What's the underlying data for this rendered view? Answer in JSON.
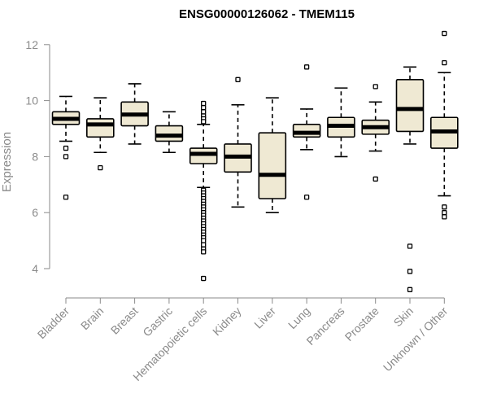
{
  "chart_data": {
    "type": "boxplot",
    "title": "ENSG00000126062 - TMEM115",
    "ylabel": "Expression",
    "xlabel": "",
    "ylim": [
      3.0,
      12.6
    ],
    "yticks": [
      4,
      6,
      8,
      10,
      12
    ],
    "grid": false,
    "colors": {
      "box_fill": "#efe9d3",
      "stroke": "#000000",
      "axis": "#8a8a8a"
    },
    "categories": [
      "Bladder",
      "Brain",
      "Breast",
      "Gastric",
      "Hematopoietic cells",
      "Kidney",
      "Liver",
      "Lung",
      "Pancreas",
      "Prostate",
      "Skin",
      "Unknown / Other"
    ],
    "boxes": [
      {
        "name": "Bladder",
        "whisker_low": 8.55,
        "q1": 9.15,
        "median": 9.35,
        "q3": 9.6,
        "whisker_high": 10.15,
        "outliers": [
          8.3,
          8.0,
          6.55
        ]
      },
      {
        "name": "Brain",
        "whisker_low": 8.15,
        "q1": 8.7,
        "median": 9.15,
        "q3": 9.35,
        "whisker_high": 10.1,
        "outliers": [
          7.6
        ]
      },
      {
        "name": "Breast",
        "whisker_low": 8.45,
        "q1": 9.1,
        "median": 9.5,
        "q3": 9.95,
        "whisker_high": 10.6,
        "outliers": []
      },
      {
        "name": "Gastric",
        "whisker_low": 8.15,
        "q1": 8.55,
        "median": 8.75,
        "q3": 9.1,
        "whisker_high": 9.6,
        "outliers": []
      },
      {
        "name": "Hematopoietic cells",
        "whisker_low": 6.9,
        "q1": 7.75,
        "median": 8.1,
        "q3": 8.3,
        "whisker_high": 9.15,
        "outliers": [
          9.9,
          9.75,
          9.6,
          9.45,
          9.35,
          9.25,
          6.8,
          6.7,
          6.6,
          6.5,
          6.4,
          6.3,
          6.2,
          6.1,
          6.0,
          5.9,
          5.8,
          5.7,
          5.6,
          5.5,
          5.4,
          5.3,
          5.2,
          5.1,
          5.0,
          4.85,
          4.7,
          4.6,
          3.65
        ]
      },
      {
        "name": "Kidney",
        "whisker_low": 6.2,
        "q1": 7.45,
        "median": 8.0,
        "q3": 8.45,
        "whisker_high": 9.85,
        "outliers": [
          10.75
        ]
      },
      {
        "name": "Liver",
        "whisker_low": 6.0,
        "q1": 6.5,
        "median": 7.35,
        "q3": 8.85,
        "whisker_high": 10.1,
        "outliers": []
      },
      {
        "name": "Lung",
        "whisker_low": 8.25,
        "q1": 8.7,
        "median": 8.85,
        "q3": 9.15,
        "whisker_high": 9.7,
        "outliers": [
          11.2,
          6.55
        ]
      },
      {
        "name": "Pancreas",
        "whisker_low": 8.0,
        "q1": 8.7,
        "median": 9.1,
        "q3": 9.4,
        "whisker_high": 10.45,
        "outliers": []
      },
      {
        "name": "Prostate",
        "whisker_low": 8.2,
        "q1": 8.8,
        "median": 9.05,
        "q3": 9.3,
        "whisker_high": 9.95,
        "outliers": [
          10.5,
          7.2
        ]
      },
      {
        "name": "Skin",
        "whisker_low": 8.45,
        "q1": 8.9,
        "median": 9.7,
        "q3": 10.75,
        "whisker_high": 11.2,
        "outliers": [
          4.8,
          3.9,
          3.25
        ]
      },
      {
        "name": "Unknown / Other",
        "whisker_low": 6.6,
        "q1": 8.3,
        "median": 8.9,
        "q3": 9.4,
        "whisker_high": 11.0,
        "outliers": [
          12.4,
          11.35,
          6.2,
          6.0,
          5.85
        ]
      }
    ]
  }
}
